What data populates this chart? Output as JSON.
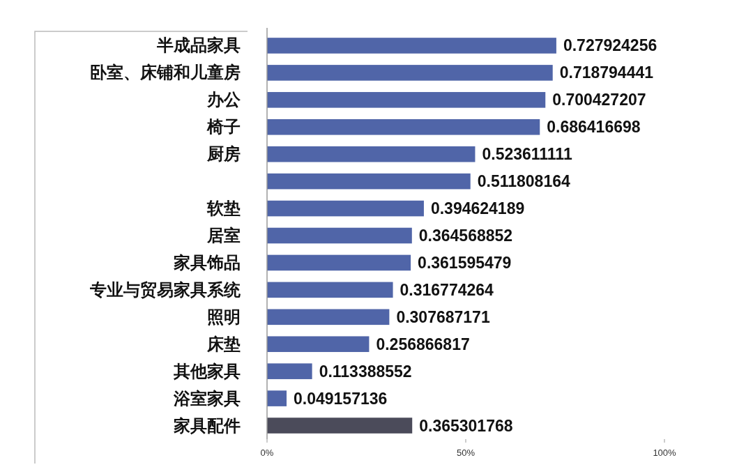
{
  "chart_data": {
    "type": "bar",
    "orientation": "horizontal",
    "categories": [
      "半成品家具",
      "卧室、床铺和儿童房",
      "办公",
      "椅子",
      "厨房",
      null,
      "软垫",
      "居室",
      "家具饰品",
      "专业与贸易家具系统",
      "照明",
      "床垫",
      "其他家具",
      "浴室家具",
      "家具配件"
    ],
    "values": [
      0.727924256,
      0.718794441,
      0.700427207,
      0.686416698,
      0.523611111,
      0.511808164,
      0.394624189,
      0.364568852,
      0.361595479,
      0.316774264,
      0.307687171,
      0.256866817,
      0.113388552,
      0.049157136,
      0.365301768
    ],
    "colors": [
      "#5065a8",
      "#5065a8",
      "#5065a8",
      "#5065a8",
      "#5065a8",
      "#5065a8",
      "#5065a8",
      "#5065a8",
      "#5065a8",
      "#5065a8",
      "#5065a8",
      "#5065a8",
      "#5065a8",
      "#5065a8",
      "#4b4b5a"
    ],
    "xlim": [
      0,
      1
    ],
    "xticks": [
      {
        "value": 0,
        "label": "0%"
      },
      {
        "value": 0.5,
        "label": "50%"
      },
      {
        "value": 1,
        "label": "100%"
      }
    ],
    "data_labels": true,
    "grid": false
  }
}
